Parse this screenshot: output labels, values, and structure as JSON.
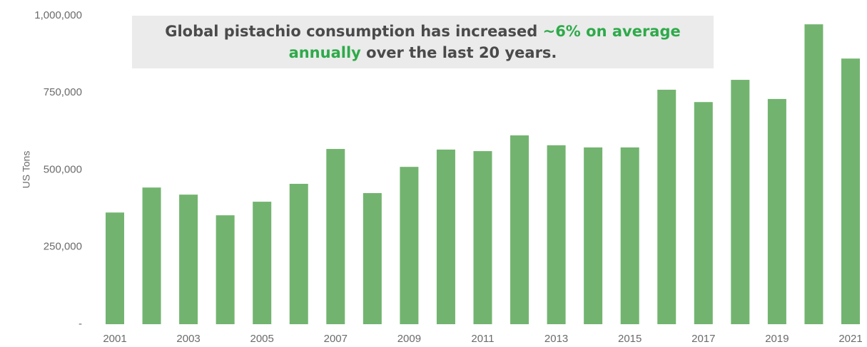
{
  "chart_data": {
    "type": "bar",
    "annotation": [
      "Global pistachio consumption has increased ",
      "~6% on average annually",
      " over the last 20 years."
    ],
    "y_label": "US Tons",
    "categories": [
      "2001",
      null,
      "2003",
      null,
      "2005",
      null,
      "2007",
      null,
      "2009",
      null,
      "2011",
      null,
      "2013",
      null,
      "2015",
      null,
      "2017",
      null,
      "2019",
      null,
      "2021"
    ],
    "values": [
      362000,
      443000,
      420000,
      353000,
      397000,
      455000,
      568000,
      425000,
      510000,
      566000,
      561000,
      612000,
      580000,
      573000,
      573000,
      760000,
      720000,
      792000,
      730000,
      972000,
      861000
    ],
    "color": "#72b46f",
    "ylim": [
      0,
      1000000
    ],
    "yticks": [
      {
        "value": 0,
        "label": "-"
      },
      {
        "value": 250000,
        "label": "250,000"
      },
      {
        "value": 500000,
        "label": "500,000"
      },
      {
        "value": 750000,
        "label": "750,000"
      },
      {
        "value": 1000000,
        "label": "1,000,000"
      }
    ]
  }
}
